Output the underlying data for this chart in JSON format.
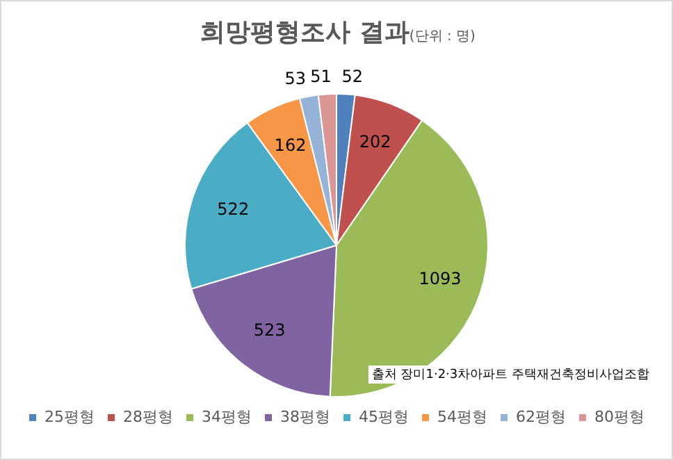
{
  "chart_data": {
    "type": "pie",
    "title": "희망평형조사 결과",
    "subtitle": "(단위 : 명)",
    "categories": [
      "25평형",
      "28평형",
      "34평형",
      "38평형",
      "45평형",
      "54평형",
      "62평형",
      "80평형"
    ],
    "values": [
      52,
      202,
      1093,
      523,
      522,
      162,
      53,
      51
    ],
    "colors": [
      "#4f81bd",
      "#c0504d",
      "#9bbb59",
      "#8064a2",
      "#4bacc6",
      "#f79646",
      "#95b3d7",
      "#d99694"
    ],
    "data_labels": true,
    "legend": "bottom",
    "annotations": [
      "출처 장미1·2·3차아파트 주택재건축정비사업조합"
    ]
  }
}
